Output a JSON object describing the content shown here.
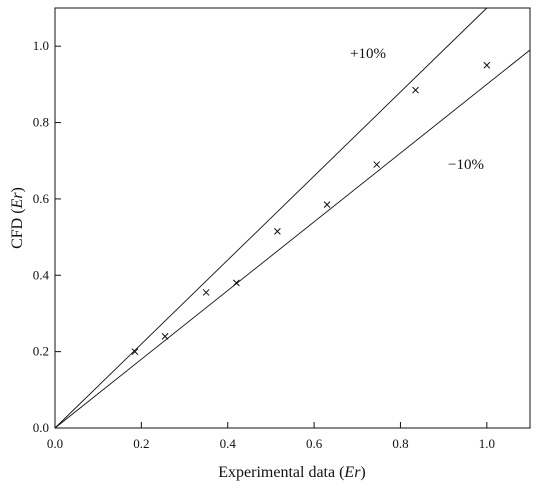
{
  "chart_data": {
    "type": "scatter",
    "title": "",
    "xlabel_prefix": "Experimental data (",
    "xlabel_var": "Er",
    "xlabel_suffix": ")",
    "ylabel_prefix": "CFD (",
    "ylabel_var": "Er",
    "ylabel_suffix": ")",
    "xlim": [
      0.0,
      1.1
    ],
    "ylim": [
      0.0,
      1.1
    ],
    "x_ticks": [
      0.0,
      0.2,
      0.4,
      0.6,
      0.8,
      1.0
    ],
    "y_ticks": [
      0.0,
      0.2,
      0.4,
      0.6,
      0.8,
      1.0
    ],
    "x_tick_labels": [
      "0.0",
      "0.2",
      "0.4",
      "0.6",
      "0.8",
      "1.0"
    ],
    "y_tick_labels": [
      "0.0",
      "0.2",
      "0.4",
      "0.6",
      "0.8",
      "1.0"
    ],
    "grid": false,
    "marker": "x",
    "points": [
      {
        "x": 0.185,
        "y": 0.2
      },
      {
        "x": 0.255,
        "y": 0.24
      },
      {
        "x": 0.35,
        "y": 0.355
      },
      {
        "x": 0.42,
        "y": 0.38
      },
      {
        "x": 0.515,
        "y": 0.515
      },
      {
        "x": 0.63,
        "y": 0.585
      },
      {
        "x": 0.745,
        "y": 0.69
      },
      {
        "x": 0.835,
        "y": 0.885
      },
      {
        "x": 1.0,
        "y": 0.95
      }
    ],
    "reference_lines": [
      {
        "label": "+10%",
        "slope": 1.1
      },
      {
        "label": "−10%",
        "slope": 0.9
      }
    ],
    "annotations": [
      {
        "text": "+10%"
      },
      {
        "text": "−10%"
      }
    ]
  }
}
